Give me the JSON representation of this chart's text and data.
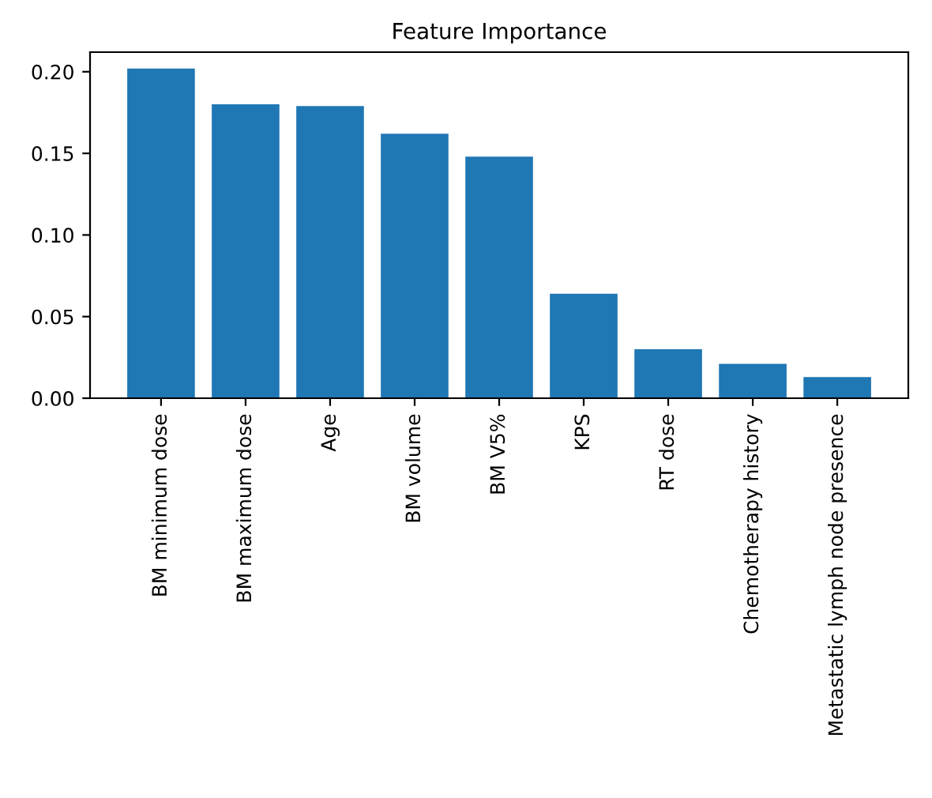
{
  "chart_data": {
    "type": "bar",
    "title": "Feature Importance",
    "categories": [
      "BM minimum dose",
      "BM maximum dose",
      "Age",
      "BM volume",
      "BM V5%",
      "KPS",
      "RT dose",
      "Chemotherapy history",
      "Metastatic lymph node presence"
    ],
    "values": [
      0.202,
      0.18,
      0.179,
      0.162,
      0.148,
      0.064,
      0.03,
      0.021,
      0.013
    ],
    "color": "#1f77b4",
    "ylim": [
      0,
      0.212
    ],
    "yticks": [
      {
        "value": 0,
        "label": "0.00"
      },
      {
        "value": 0.05,
        "label": "0.05"
      },
      {
        "value": 0.1,
        "label": "0.10"
      },
      {
        "value": 0.15,
        "label": "0.15"
      },
      {
        "value": 0.2,
        "label": "0.20"
      }
    ],
    "grid": false
  }
}
